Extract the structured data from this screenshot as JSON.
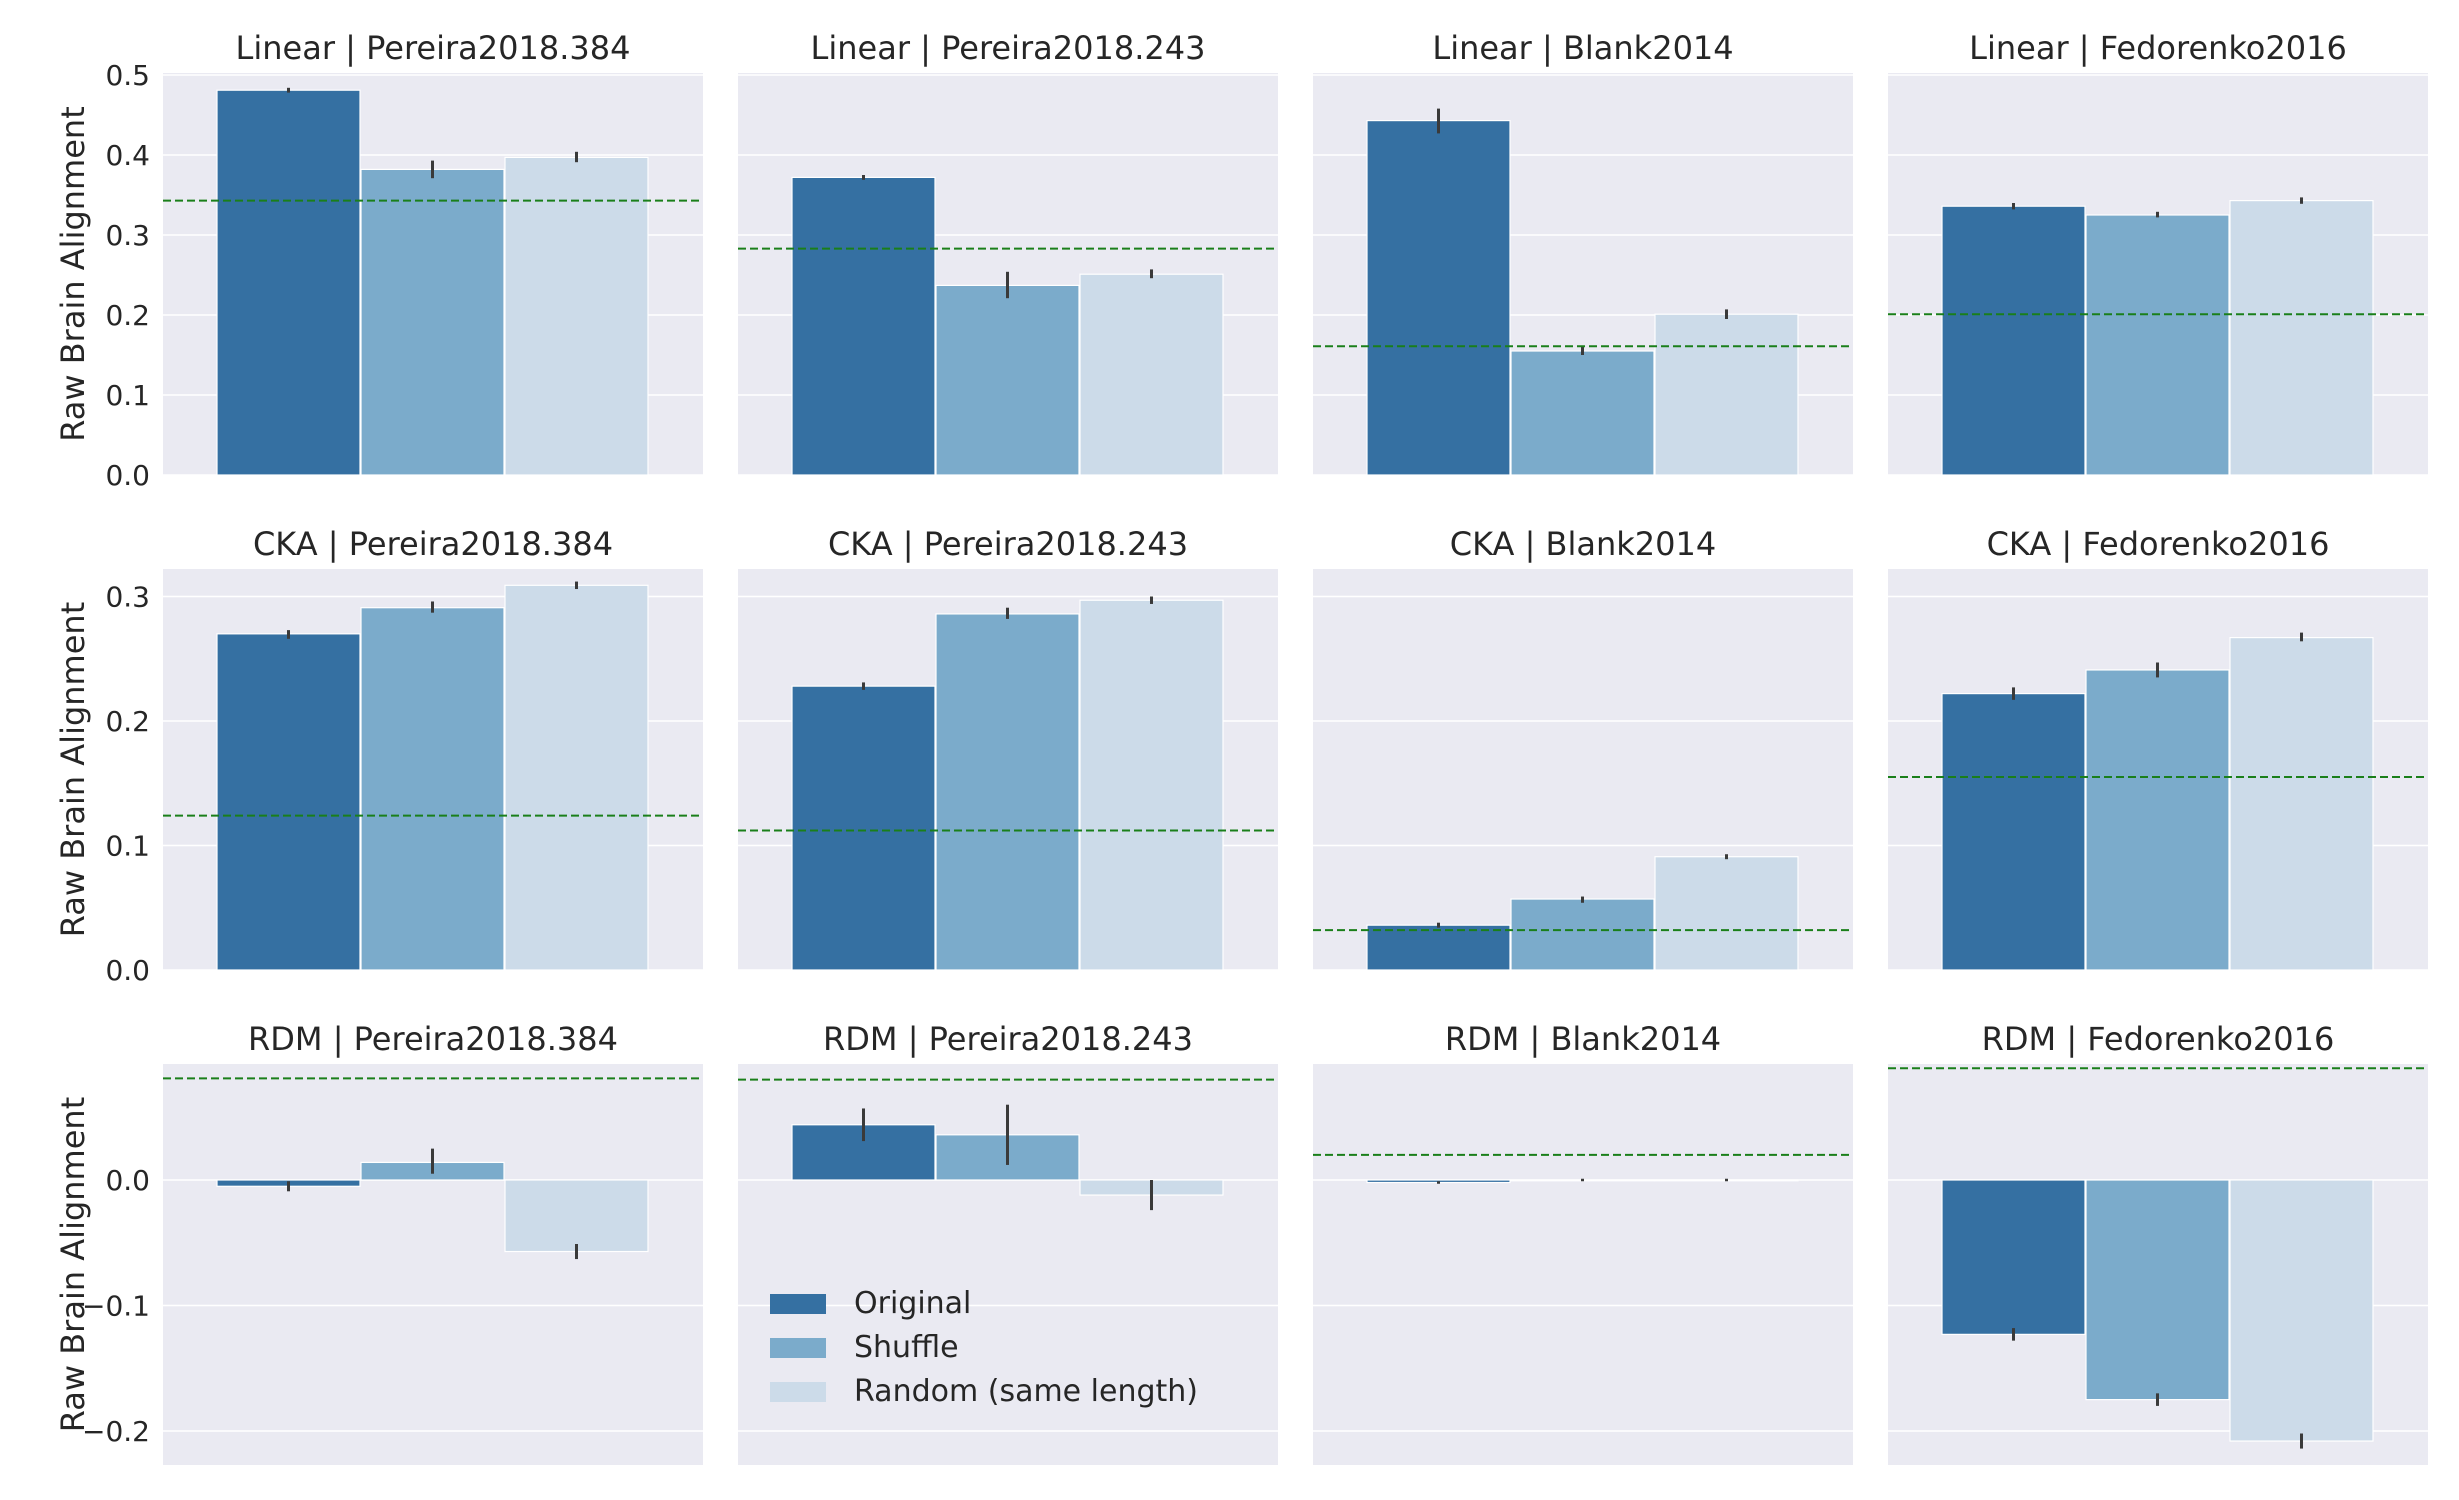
{
  "ylabel": "Raw Brain Alignment",
  "legend": {
    "placement": "lower-left (RDM | Pereira2018.243 panel)",
    "entries": [
      "Original",
      "Shuffle",
      "Random (same length)"
    ]
  },
  "colors": {
    "original": "#3570a2",
    "shuffle": "#7babcb",
    "random": "#ccdbe9",
    "panel_bg": "#eaeaf2",
    "grid": "#ffffff",
    "baseline": "#1a7f1a",
    "errorbar": "#3a3a3a"
  },
  "chart_data": [
    {
      "type": "bar",
      "title": "Linear | Pereira2018.384",
      "categories": [
        "Original",
        "Shuffle",
        "Random (same length)"
      ],
      "series": [
        {
          "values": [
            0.481,
            0.382,
            0.397
          ]
        }
      ],
      "errors": [
        [
          0.478,
          0.484
        ],
        [
          0.371,
          0.393
        ],
        [
          0.391,
          0.404
        ]
      ],
      "baseline": 0.343,
      "ylim": [
        0,
        0.5
      ],
      "yticks": [
        0.0,
        0.1,
        0.2,
        0.3,
        0.4,
        0.5
      ],
      "ytick_labels": [
        "0.0",
        "0.1",
        "0.2",
        "0.3",
        "0.4",
        "0.5"
      ],
      "ylabel": "Raw Brain Alignment",
      "grid": true
    },
    {
      "type": "bar",
      "title": "Linear | Pereira2018.243",
      "categories": [
        "Original",
        "Shuffle",
        "Random (same length)"
      ],
      "series": [
        {
          "values": [
            0.372,
            0.237,
            0.251
          ]
        }
      ],
      "errors": [
        [
          0.369,
          0.375
        ],
        [
          0.221,
          0.254
        ],
        [
          0.246,
          0.257
        ]
      ],
      "baseline": 0.283,
      "ylim": [
        0,
        0.5
      ],
      "yticks": [
        0.0,
        0.1,
        0.2,
        0.3,
        0.4,
        0.5
      ],
      "ytick_labels": [],
      "grid": true
    },
    {
      "type": "bar",
      "title": "Linear | Blank2014",
      "categories": [
        "Original",
        "Shuffle",
        "Random (same length)"
      ],
      "series": [
        {
          "values": [
            0.443,
            0.155,
            0.201
          ]
        }
      ],
      "errors": [
        [
          0.427,
          0.458
        ],
        [
          0.15,
          0.16
        ],
        [
          0.195,
          0.207
        ]
      ],
      "baseline": 0.161,
      "ylim": [
        0,
        0.5
      ],
      "yticks": [
        0.0,
        0.1,
        0.2,
        0.3,
        0.4,
        0.5
      ],
      "ytick_labels": [],
      "grid": true
    },
    {
      "type": "bar",
      "title": "Linear | Fedorenko2016",
      "categories": [
        "Original",
        "Shuffle",
        "Random (same length)"
      ],
      "series": [
        {
          "values": [
            0.336,
            0.325,
            0.343
          ]
        }
      ],
      "errors": [
        [
          0.332,
          0.34
        ],
        [
          0.322,
          0.329
        ],
        [
          0.339,
          0.347
        ]
      ],
      "baseline": 0.201,
      "ylim": [
        0,
        0.5
      ],
      "yticks": [
        0.0,
        0.1,
        0.2,
        0.3,
        0.4,
        0.5
      ],
      "ytick_labels": [],
      "grid": true
    },
    {
      "type": "bar",
      "title": "CKA | Pereira2018.384",
      "categories": [
        "Original",
        "Shuffle",
        "Random (same length)"
      ],
      "series": [
        {
          "values": [
            0.27,
            0.291,
            0.309
          ]
        }
      ],
      "errors": [
        [
          0.266,
          0.273
        ],
        [
          0.287,
          0.296
        ],
        [
          0.306,
          0.312
        ]
      ],
      "baseline": 0.124,
      "ylim": [
        0,
        0.3
      ],
      "yticks": [
        0.0,
        0.1,
        0.2,
        0.3
      ],
      "ytick_labels": [
        "0.0",
        "0.1",
        "0.2",
        "0.3"
      ],
      "ylabel": "Raw Brain Alignment",
      "grid": true
    },
    {
      "type": "bar",
      "title": "CKA | Pereira2018.243",
      "categories": [
        "Original",
        "Shuffle",
        "Random (same length)"
      ],
      "series": [
        {
          "values": [
            0.228,
            0.286,
            0.297
          ]
        }
      ],
      "errors": [
        [
          0.225,
          0.231
        ],
        [
          0.282,
          0.291
        ],
        [
          0.294,
          0.3
        ]
      ],
      "baseline": 0.112,
      "ylim": [
        0,
        0.3
      ],
      "yticks": [
        0.0,
        0.1,
        0.2,
        0.3
      ],
      "ytick_labels": [],
      "grid": true
    },
    {
      "type": "bar",
      "title": "CKA | Blank2014",
      "categories": [
        "Original",
        "Shuffle",
        "Random (same length)"
      ],
      "series": [
        {
          "values": [
            0.036,
            0.057,
            0.091
          ]
        }
      ],
      "errors": [
        [
          0.034,
          0.038
        ],
        [
          0.054,
          0.059
        ],
        [
          0.089,
          0.093
        ]
      ],
      "baseline": 0.032,
      "ylim": [
        0,
        0.3
      ],
      "yticks": [
        0.0,
        0.1,
        0.2,
        0.3
      ],
      "ytick_labels": [],
      "grid": true
    },
    {
      "type": "bar",
      "title": "CKA | Fedorenko2016",
      "categories": [
        "Original",
        "Shuffle",
        "Random (same length)"
      ],
      "series": [
        {
          "values": [
            0.222,
            0.241,
            0.267
          ]
        }
      ],
      "errors": [
        [
          0.217,
          0.227
        ],
        [
          0.235,
          0.247
        ],
        [
          0.264,
          0.271
        ]
      ],
      "baseline": 0.155,
      "ylim": [
        0,
        0.3
      ],
      "yticks": [
        0.0,
        0.1,
        0.2,
        0.3
      ],
      "ytick_labels": [],
      "grid": true
    },
    {
      "type": "bar",
      "title": "RDM | Pereira2018.384",
      "categories": [
        "Original",
        "Shuffle",
        "Random (same length)"
      ],
      "series": [
        {
          "values": [
            -0.005,
            0.014,
            -0.057
          ]
        }
      ],
      "errors": [
        [
          -0.009,
          -0.001
        ],
        [
          0.005,
          0.025
        ],
        [
          -0.063,
          -0.051
        ]
      ],
      "baseline": 0.081,
      "ylim": [
        -0.2,
        0.08
      ],
      "yticks": [
        -0.2,
        -0.1,
        0.0
      ],
      "ytick_labels": [
        "−0.2",
        "−0.1",
        "0.0"
      ],
      "ylabel": "Raw Brain Alignment",
      "grid": true
    },
    {
      "type": "bar",
      "title": "RDM | Pereira2018.243",
      "categories": [
        "Original",
        "Shuffle",
        "Random (same length)"
      ],
      "series": [
        {
          "values": [
            0.044,
            0.036,
            -0.012
          ]
        }
      ],
      "errors": [
        [
          0.031,
          0.057
        ],
        [
          0.012,
          0.06
        ],
        [
          -0.024,
          0.0
        ]
      ],
      "baseline": 0.08,
      "ylim": [
        -0.2,
        0.08
      ],
      "yticks": [
        -0.2,
        -0.1,
        0.0
      ],
      "ytick_labels": [],
      "grid": true,
      "legend": true
    },
    {
      "type": "bar",
      "title": "RDM | Blank2014",
      "categories": [
        "Original",
        "Shuffle",
        "Random (same length)"
      ],
      "series": [
        {
          "values": [
            -0.002,
            0.0,
            0.0
          ]
        }
      ],
      "errors": [
        [
          -0.003,
          -0.001
        ],
        [
          -0.001,
          0.001
        ],
        [
          -0.001,
          0.001
        ]
      ],
      "baseline": 0.02,
      "ylim": [
        -0.2,
        0.08
      ],
      "yticks": [
        -0.2,
        -0.1,
        0.0
      ],
      "ytick_labels": [],
      "grid": true
    },
    {
      "type": "bar",
      "title": "RDM | Fedorenko2016",
      "categories": [
        "Original",
        "Shuffle",
        "Random (same length)"
      ],
      "series": [
        {
          "values": [
            -0.123,
            -0.175,
            -0.208
          ]
        }
      ],
      "errors": [
        [
          -0.128,
          -0.118
        ],
        [
          -0.18,
          -0.17
        ],
        [
          -0.214,
          -0.202
        ]
      ],
      "baseline": 0.089,
      "ylim": [
        -0.2,
        0.08
      ],
      "yticks": [
        -0.2,
        -0.1,
        0.0
      ],
      "ytick_labels": [],
      "grid": true
    }
  ]
}
